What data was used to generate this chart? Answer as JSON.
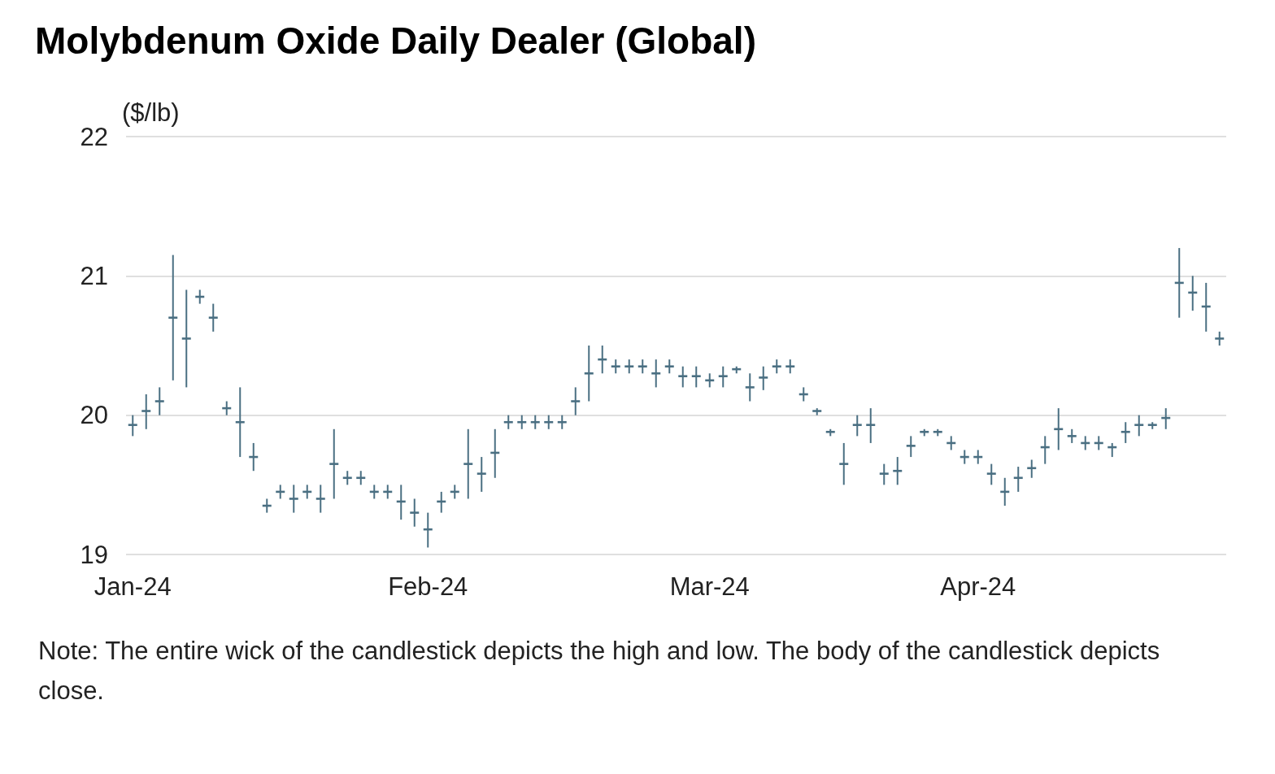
{
  "chart_data": {
    "type": "candlestick",
    "title": "Molybdenum Oxide Daily Dealer (Global)",
    "ylabel": "($/lb)",
    "annotations": [
      "Note: The entire wick of the candlestick depicts the high and low. The body of the candlestick depicts close."
    ],
    "categories": [
      "Jan-24",
      null,
      null,
      null,
      null,
      null,
      null,
      null,
      null,
      null,
      null,
      null,
      null,
      null,
      null,
      null,
      null,
      null,
      null,
      null,
      null,
      null,
      "Feb-24",
      null,
      null,
      null,
      null,
      null,
      null,
      null,
      null,
      null,
      null,
      null,
      null,
      null,
      null,
      null,
      null,
      null,
      null,
      null,
      null,
      "Mar-24",
      null,
      null,
      null,
      null,
      null,
      null,
      null,
      null,
      null,
      null,
      null,
      null,
      null,
      null,
      null,
      null,
      null,
      null,
      null,
      "Apr-24",
      null,
      null,
      null,
      null,
      null,
      null,
      null,
      null,
      null,
      null,
      null,
      null,
      null,
      null,
      null,
      null,
      null,
      null
    ],
    "ohlc": [
      [
        19.93,
        20.0,
        19.85,
        19.93
      ],
      [
        20.03,
        20.15,
        19.9,
        20.03
      ],
      [
        20.1,
        20.2,
        20.0,
        20.1
      ],
      [
        20.7,
        21.15,
        20.25,
        20.7
      ],
      [
        20.55,
        20.9,
        20.2,
        20.55
      ],
      [
        20.85,
        20.9,
        20.8,
        20.85
      ],
      [
        20.7,
        20.8,
        20.6,
        20.7
      ],
      [
        20.05,
        20.1,
        20.0,
        20.05
      ],
      [
        19.95,
        20.2,
        19.7,
        19.95
      ],
      [
        19.7,
        19.8,
        19.6,
        19.7
      ],
      [
        19.35,
        19.4,
        19.3,
        19.35
      ],
      [
        19.45,
        19.5,
        19.4,
        19.45
      ],
      [
        19.4,
        19.5,
        19.3,
        19.4
      ],
      [
        19.45,
        19.5,
        19.4,
        19.45
      ],
      [
        19.4,
        19.5,
        19.3,
        19.4
      ],
      [
        19.65,
        19.9,
        19.4,
        19.65
      ],
      [
        19.55,
        19.6,
        19.5,
        19.55
      ],
      [
        19.55,
        19.6,
        19.5,
        19.55
      ],
      [
        19.45,
        19.5,
        19.4,
        19.45
      ],
      [
        19.45,
        19.5,
        19.4,
        19.45
      ],
      [
        19.38,
        19.5,
        19.25,
        19.38
      ],
      [
        19.3,
        19.4,
        19.2,
        19.3
      ],
      [
        19.18,
        19.3,
        19.05,
        19.18
      ],
      [
        19.38,
        19.45,
        19.3,
        19.38
      ],
      [
        19.45,
        19.5,
        19.4,
        19.45
      ],
      [
        19.65,
        19.9,
        19.4,
        19.65
      ],
      [
        19.58,
        19.7,
        19.45,
        19.58
      ],
      [
        19.73,
        19.9,
        19.55,
        19.73
      ],
      [
        19.95,
        20.0,
        19.9,
        19.95
      ],
      [
        19.95,
        20.0,
        19.9,
        19.95
      ],
      [
        19.95,
        20.0,
        19.9,
        19.95
      ],
      [
        19.95,
        20.0,
        19.9,
        19.95
      ],
      [
        19.95,
        20.0,
        19.9,
        19.95
      ],
      [
        20.1,
        20.2,
        20.0,
        20.1
      ],
      [
        20.3,
        20.5,
        20.1,
        20.3
      ],
      [
        20.4,
        20.5,
        20.3,
        20.4
      ],
      [
        20.35,
        20.4,
        20.3,
        20.35
      ],
      [
        20.35,
        20.4,
        20.3,
        20.35
      ],
      [
        20.35,
        20.4,
        20.3,
        20.35
      ],
      [
        20.3,
        20.4,
        20.2,
        20.3
      ],
      [
        20.35,
        20.4,
        20.3,
        20.35
      ],
      [
        20.28,
        20.35,
        20.2,
        20.28
      ],
      [
        20.28,
        20.35,
        20.2,
        20.28
      ],
      [
        20.25,
        20.3,
        20.2,
        20.25
      ],
      [
        20.28,
        20.35,
        20.2,
        20.28
      ],
      [
        20.33,
        20.35,
        20.3,
        20.33
      ],
      [
        20.2,
        20.3,
        20.1,
        20.2
      ],
      [
        20.27,
        20.35,
        20.18,
        20.27
      ],
      [
        20.35,
        20.4,
        20.3,
        20.35
      ],
      [
        20.35,
        20.4,
        20.3,
        20.35
      ],
      [
        20.15,
        20.2,
        20.1,
        20.15
      ],
      [
        20.03,
        20.05,
        20.0,
        20.03
      ],
      [
        19.88,
        19.9,
        19.85,
        19.88
      ],
      [
        19.65,
        19.8,
        19.5,
        19.65
      ],
      [
        19.93,
        20.0,
        19.85,
        19.93
      ],
      [
        19.93,
        20.05,
        19.8,
        19.93
      ],
      [
        19.58,
        19.65,
        19.5,
        19.58
      ],
      [
        19.6,
        19.7,
        19.5,
        19.6
      ],
      [
        19.78,
        19.85,
        19.7,
        19.78
      ],
      [
        19.88,
        19.9,
        19.85,
        19.88
      ],
      [
        19.88,
        19.9,
        19.85,
        19.88
      ],
      [
        19.8,
        19.85,
        19.75,
        19.8
      ],
      [
        19.7,
        19.75,
        19.65,
        19.7
      ],
      [
        19.7,
        19.75,
        19.65,
        19.7
      ],
      [
        19.58,
        19.65,
        19.5,
        19.58
      ],
      [
        19.45,
        19.55,
        19.35,
        19.45
      ],
      [
        19.55,
        19.63,
        19.45,
        19.55
      ],
      [
        19.62,
        19.68,
        19.55,
        19.62
      ],
      [
        19.77,
        19.85,
        19.65,
        19.77
      ],
      [
        19.9,
        20.05,
        19.75,
        19.9
      ],
      [
        19.85,
        19.9,
        19.8,
        19.85
      ],
      [
        19.8,
        19.85,
        19.75,
        19.8
      ],
      [
        19.8,
        19.85,
        19.75,
        19.8
      ],
      [
        19.77,
        19.8,
        19.7,
        19.77
      ],
      [
        19.88,
        19.95,
        19.8,
        19.88
      ],
      [
        19.93,
        20.0,
        19.85,
        19.93
      ],
      [
        19.93,
        19.95,
        19.9,
        19.93
      ],
      [
        19.98,
        20.05,
        19.9,
        19.98
      ],
      [
        20.95,
        21.2,
        20.7,
        20.95
      ],
      [
        20.88,
        21.0,
        20.75,
        20.88
      ],
      [
        20.78,
        20.95,
        20.6,
        20.78
      ],
      [
        20.55,
        20.6,
        20.5,
        20.55
      ]
    ],
    "color": "#4a6f82",
    "ylim": [
      19,
      22
    ],
    "yticks": [
      19,
      20,
      21,
      22
    ],
    "grid": "y"
  }
}
